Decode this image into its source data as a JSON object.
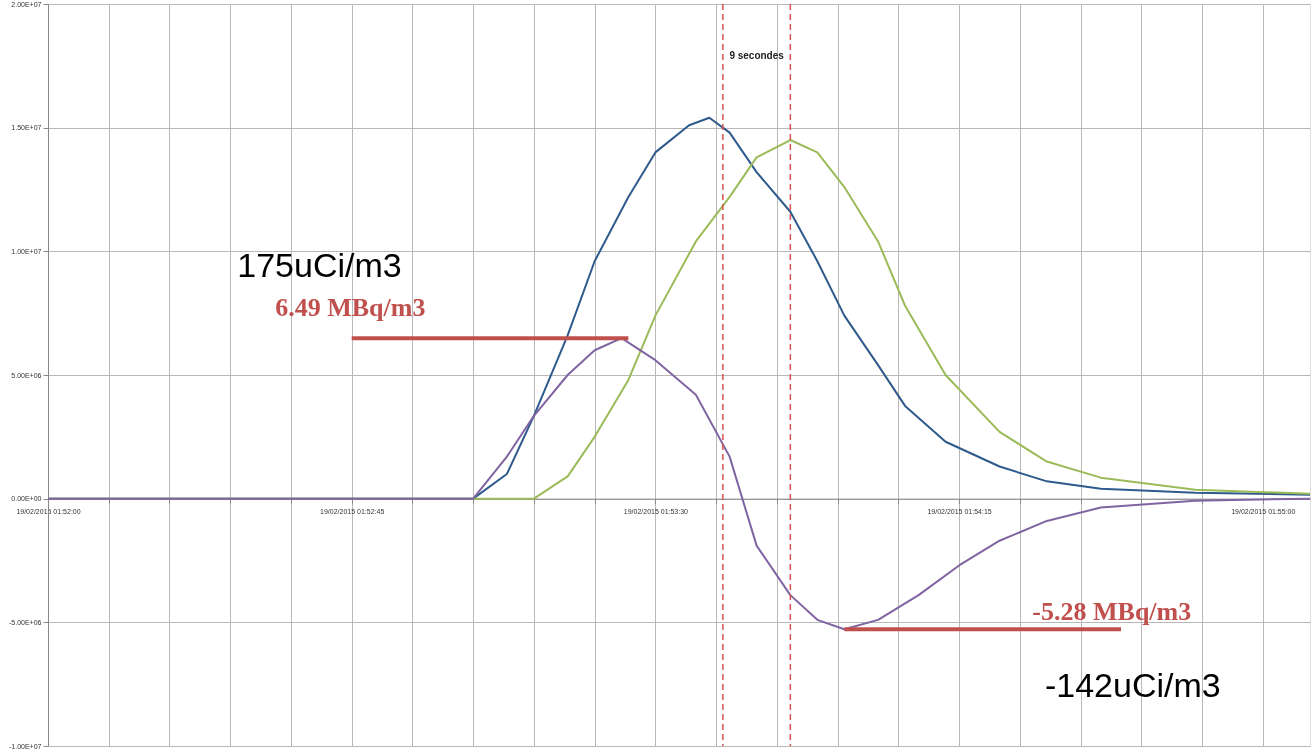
{
  "chart_data": {
    "type": "line",
    "xlim": [
      "2015-02-19T01:52:00",
      "2015-02-19T01:55:07"
    ],
    "ylim": [
      -10000000,
      20000000
    ],
    "xticks": [
      {
        "value": "2015-02-19T01:52:00",
        "label": "19/02/2015 01:52:00"
      },
      {
        "value": "2015-02-19T01:52:09",
        "label": null
      },
      {
        "value": "2015-02-19T01:52:18",
        "label": null
      },
      {
        "value": "2015-02-19T01:52:27",
        "label": null
      },
      {
        "value": "2015-02-19T01:52:36",
        "label": null
      },
      {
        "value": "2015-02-19T01:52:45",
        "label": "19/02/2015 01:52:45"
      },
      {
        "value": "2015-02-19T01:52:54",
        "label": null
      },
      {
        "value": "2015-02-19T01:53:03",
        "label": null
      },
      {
        "value": "2015-02-19T01:53:12",
        "label": null
      },
      {
        "value": "2015-02-19T01:53:21",
        "label": null
      },
      {
        "value": "2015-02-19T01:53:30",
        "label": "19/02/2015 01:53:30"
      },
      {
        "value": "2015-02-19T01:53:39",
        "label": null
      },
      {
        "value": "2015-02-19T01:53:48",
        "label": null
      },
      {
        "value": "2015-02-19T01:53:57",
        "label": null
      },
      {
        "value": "2015-02-19T01:54:06",
        "label": null
      },
      {
        "value": "2015-02-19T01:54:15",
        "label": "19/02/2015 01:54:15"
      },
      {
        "value": "2015-02-19T01:54:24",
        "label": null
      },
      {
        "value": "2015-02-19T01:54:33",
        "label": null
      },
      {
        "value": "2015-02-19T01:54:42",
        "label": null
      },
      {
        "value": "2015-02-19T01:54:51",
        "label": null
      },
      {
        "value": "2015-02-19T01:55:00",
        "label": "19/02/2015 01:55:00"
      }
    ],
    "yticks": [
      {
        "value": -10000000,
        "label": "-1.00E+07"
      },
      {
        "value": -5000000,
        "label": "-5.00E+06"
      },
      {
        "value": 0,
        "label": "0.00E+00"
      },
      {
        "value": 5000000,
        "label": "5.00E+06"
      },
      {
        "value": 10000000,
        "label": "1.00E+07"
      },
      {
        "value": 15000000,
        "label": "1.50E+07"
      },
      {
        "value": 20000000,
        "label": "2.00E+07"
      }
    ],
    "grid": true,
    "series": [
      {
        "color": "#2f5a8c",
        "x": [
          "2015-02-19T01:52:00",
          "2015-02-19T01:53:03",
          "2015-02-19T01:53:08",
          "2015-02-19T01:53:12",
          "2015-02-19T01:53:17",
          "2015-02-19T01:53:21",
          "2015-02-19T01:53:26",
          "2015-02-19T01:53:30",
          "2015-02-19T01:53:35",
          "2015-02-19T01:53:38",
          "2015-02-19T01:53:41",
          "2015-02-19T01:53:45",
          "2015-02-19T01:53:50",
          "2015-02-19T01:53:54",
          "2015-02-19T01:53:58",
          "2015-02-19T01:54:03",
          "2015-02-19T01:54:07",
          "2015-02-19T01:54:13",
          "2015-02-19T01:54:21",
          "2015-02-19T01:54:28",
          "2015-02-19T01:54:36",
          "2015-02-19T01:54:50",
          "2015-02-19T01:55:07"
        ],
        "values": [
          0,
          0,
          1000000,
          3350000,
          6600000,
          9600000,
          12200000,
          14000000,
          15100000,
          15400000,
          14800000,
          13200000,
          11600000,
          9600000,
          7400000,
          5400000,
          3750000,
          2300000,
          1300000,
          700000,
          400000,
          240000,
          160000
        ]
      },
      {
        "color": "#9bbb59",
        "x": [
          "2015-02-19T01:52:00",
          "2015-02-19T01:53:12",
          "2015-02-19T01:53:17",
          "2015-02-19T01:53:21",
          "2015-02-19T01:53:26",
          "2015-02-19T01:53:30",
          "2015-02-19T01:53:36",
          "2015-02-19T01:53:41",
          "2015-02-19T01:53:45",
          "2015-02-19T01:53:50",
          "2015-02-19T01:53:54",
          "2015-02-19T01:53:58",
          "2015-02-19T01:54:03",
          "2015-02-19T01:54:07",
          "2015-02-19T01:54:13",
          "2015-02-19T01:54:21",
          "2015-02-19T01:54:28",
          "2015-02-19T01:54:36",
          "2015-02-19T01:54:50",
          "2015-02-19T01:55:07"
        ],
        "values": [
          0,
          0,
          900000,
          2500000,
          4800000,
          7400000,
          10400000,
          12200000,
          13800000,
          14500000,
          14000000,
          12600000,
          10400000,
          7800000,
          5000000,
          2700000,
          1500000,
          850000,
          360000,
          200000
        ]
      },
      {
        "color": "#8064a2",
        "x": [
          "2015-02-19T01:52:00",
          "2015-02-19T01:53:03",
          "2015-02-19T01:53:08",
          "2015-02-19T01:53:12",
          "2015-02-19T01:53:17",
          "2015-02-19T01:53:21",
          "2015-02-19T01:53:25",
          "2015-02-19T01:53:30",
          "2015-02-19T01:53:36",
          "2015-02-19T01:53:41",
          "2015-02-19T01:53:45",
          "2015-02-19T01:53:50",
          "2015-02-19T01:53:54",
          "2015-02-19T01:53:58",
          "2015-02-19T01:54:03",
          "2015-02-19T01:54:09",
          "2015-02-19T01:54:15",
          "2015-02-19T01:54:21",
          "2015-02-19T01:54:28",
          "2015-02-19T01:54:36",
          "2015-02-19T01:54:50",
          "2015-02-19T01:55:07"
        ],
        "values": [
          0,
          0,
          1700000,
          3350000,
          5000000,
          6000000,
          6490000,
          5600000,
          4200000,
          1700000,
          -1900000,
          -3900000,
          -4900000,
          -5280000,
          -4900000,
          -3900000,
          -2700000,
          -1700000,
          -900000,
          -360000,
          -80000,
          0
        ]
      },
      {
        "color": "#c0504d",
        "x": [
          "2015-02-19T01:52:45",
          "2015-02-19T01:53:26"
        ],
        "values": [
          6490000,
          6490000
        ]
      },
      {
        "color": "#c0504d",
        "x": [
          "2015-02-19T01:53:58",
          "2015-02-19T01:54:39"
        ],
        "values": [
          -5280000,
          -5280000
        ]
      }
    ],
    "ref_lines": [
      {
        "axis": "x",
        "value": "2015-02-19T01:53:40",
        "color": "#d9534f",
        "line_style": "dashed"
      },
      {
        "axis": "x",
        "value": "2015-02-19T01:53:50",
        "color": "#d9534f",
        "line_style": "dashed"
      }
    ],
    "annotations": [
      "9 secondes",
      "175uCi/m3",
      "6.49 MBq/m3",
      "-5.28 MBq/m3",
      "-142uCi/m3"
    ]
  }
}
